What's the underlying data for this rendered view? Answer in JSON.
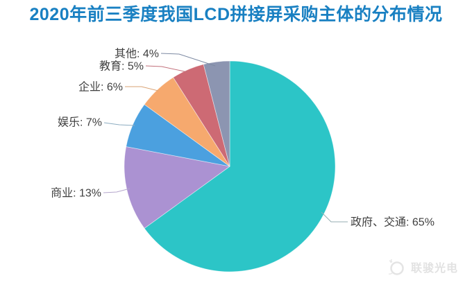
{
  "title": "2020年前三季度我国LCD拼接屏采购主体的分布情况",
  "title_color": "#1980c2",
  "watermark": {
    "text": "联骏光电",
    "color": "#e2e2e2"
  },
  "chart_data": {
    "type": "pie",
    "title": "2020年前三季度我国LCD拼接屏采购主体的分布情况",
    "categories": [
      "政府、交通",
      "商业",
      "娱乐",
      "企业",
      "教育",
      "其他"
    ],
    "values": [
      65,
      13,
      7,
      6,
      5,
      4
    ],
    "unit": "%",
    "label_format": "{name}: {value}%",
    "label_color": "#3f3f3f",
    "colors": [
      "#2cc5c7",
      "#ab92d2",
      "#4ba0df",
      "#f6a96e",
      "#cd6a74",
      "#8c95b1"
    ],
    "leader_line_colors": [
      "#95aeb2",
      "#b4a6cc",
      "#8cacc0",
      "#d9a273",
      "#c2707b",
      "#7c89a2"
    ],
    "start_angle": "12 o'clock",
    "direction": "clockwise",
    "legend": "none - direct labels with leader lines"
  }
}
